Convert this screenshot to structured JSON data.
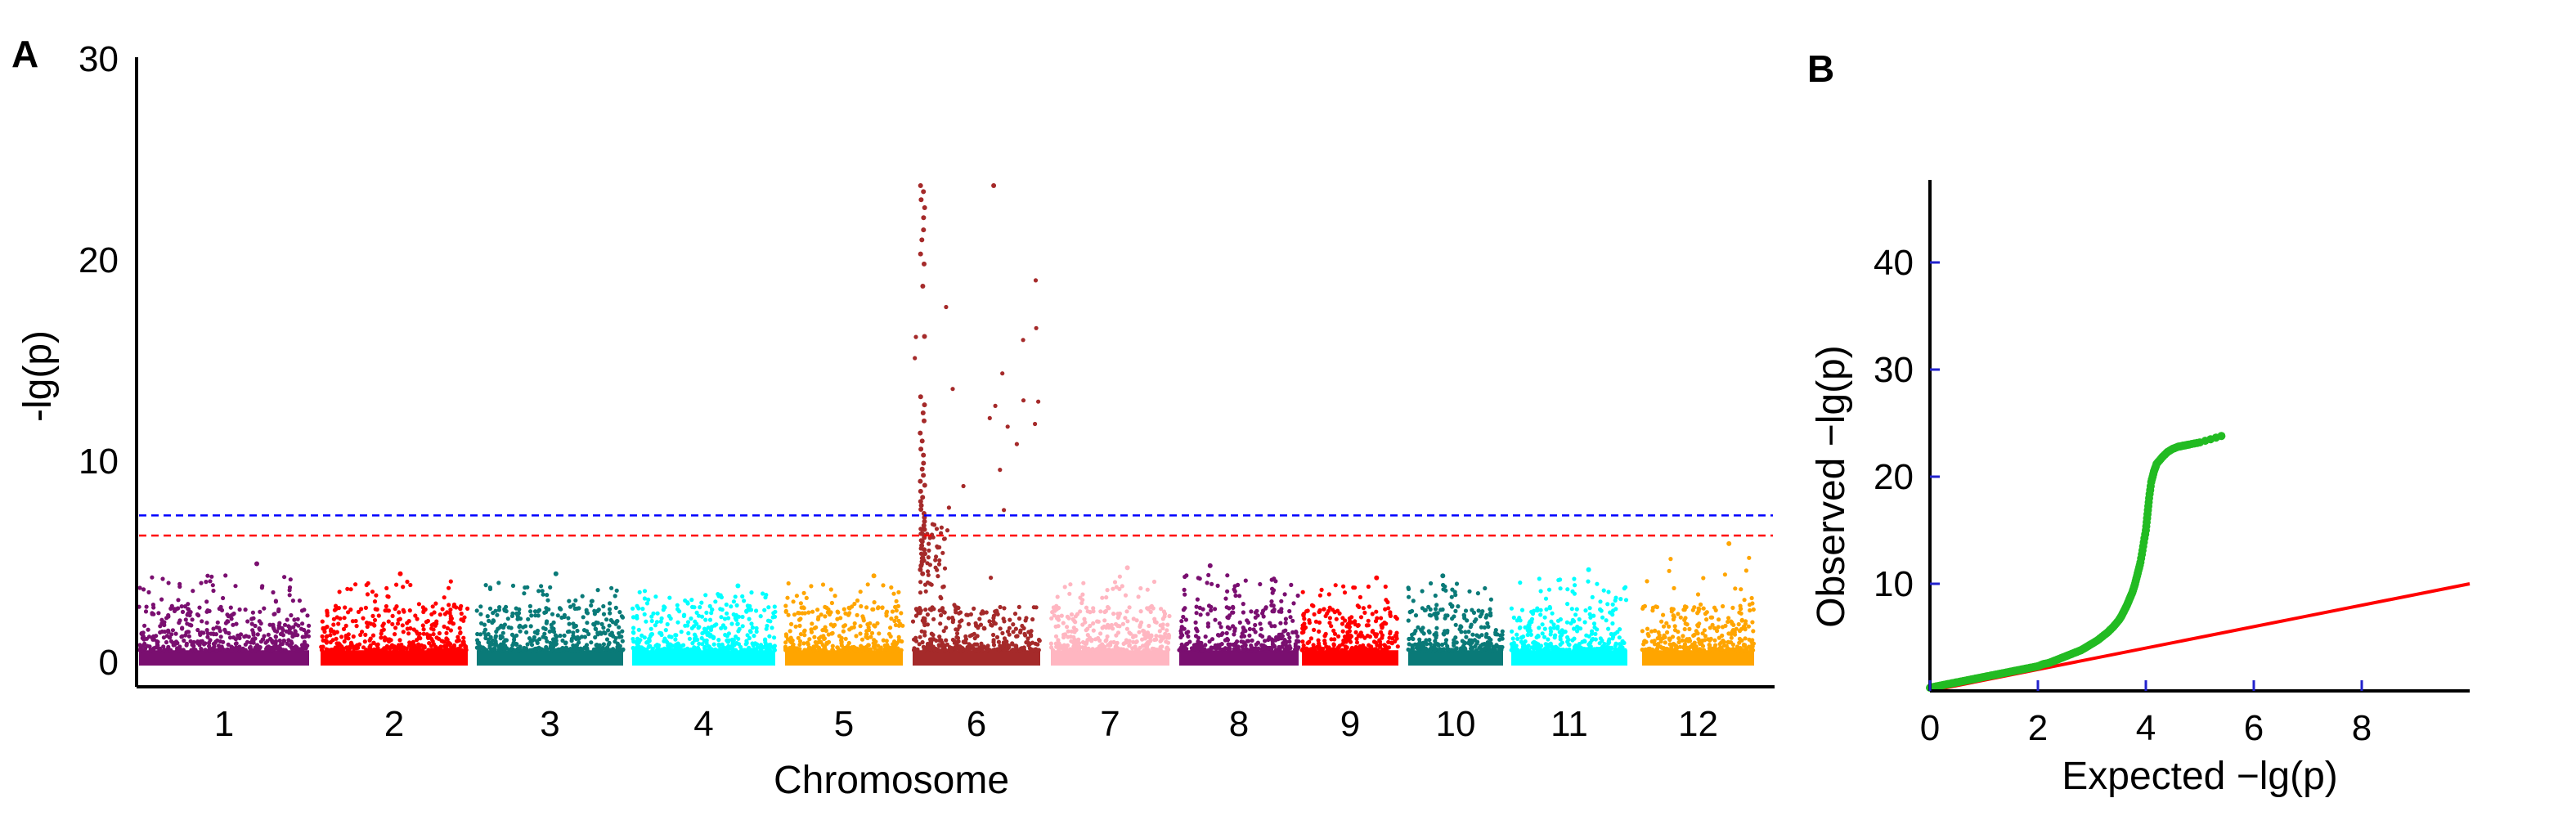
{
  "chart_data": [
    {
      "panel": "A",
      "type": "scatter",
      "subtype": "manhattan",
      "xlabel": "Chromosome",
      "ylabel": "-lg(p)",
      "ylim": [
        0,
        30
      ],
      "yticks": [
        0,
        10,
        20,
        30
      ],
      "categories": [
        "1",
        "2",
        "3",
        "4",
        "5",
        "6",
        "7",
        "8",
        "9",
        "10",
        "11",
        "12"
      ],
      "chromosome_colors": [
        "#7a0f70",
        "#ff0000",
        "#0a7a78",
        "#00ffff",
        "#ffa500",
        "#a52a2a",
        "#ffb6c1",
        "#7a0f70",
        "#ff0000",
        "#0a7a78",
        "#00ffff",
        "#ffa500"
      ],
      "chromosome_max": [
        4.9,
        4.4,
        4.4,
        3.8,
        4.3,
        23.7,
        4.7,
        4.8,
        4.2,
        4.3,
        4.6,
        5.9
      ],
      "thresholds": [
        {
          "value": 7.3,
          "color": "#0000ff",
          "style": "dashed"
        },
        {
          "value": 6.3,
          "color": "#ff0000",
          "style": "dashed"
        }
      ],
      "peak_points_chr6": [
        23.7,
        23.4,
        23.0,
        22.6,
        22.1,
        21.5,
        21.0,
        20.3,
        19.8,
        18.7,
        16.2,
        13.2,
        12.8,
        12.4,
        12.0,
        11.4,
        11.0,
        10.6,
        10.3,
        9.9,
        9.6,
        9.3,
        9.0,
        8.8,
        8.5,
        8.2,
        8.0,
        7.8,
        7.6,
        7.4,
        7.2,
        7.0,
        6.8,
        6.6,
        6.4,
        6.2,
        6.0,
        5.8,
        5.6,
        5.4,
        5.2,
        5.0,
        4.8,
        4.6,
        4.4
      ]
    },
    {
      "panel": "B",
      "type": "scatter",
      "subtype": "qq",
      "xlabel": "Expected −lg(p)",
      "ylabel": "Observed −lg(p)",
      "xlim": [
        0,
        10
      ],
      "ylim": [
        0,
        47
      ],
      "xticks": [
        0,
        2,
        4,
        6,
        8
      ],
      "yticks": [
        10,
        20,
        30,
        40
      ],
      "reference_line": {
        "x": [
          0,
          10
        ],
        "y": [
          0,
          10
        ],
        "color": "#ff0000"
      },
      "point_color": "#22bb22",
      "points": [
        [
          0.0,
          0.3
        ],
        [
          0.1,
          0.4
        ],
        [
          0.2,
          0.5
        ],
        [
          0.3,
          0.6
        ],
        [
          0.4,
          0.7
        ],
        [
          0.5,
          0.8
        ],
        [
          0.6,
          0.9
        ],
        [
          0.7,
          1.0
        ],
        [
          0.8,
          1.1
        ],
        [
          0.9,
          1.2
        ],
        [
          1.0,
          1.3
        ],
        [
          1.1,
          1.4
        ],
        [
          1.2,
          1.5
        ],
        [
          1.3,
          1.6
        ],
        [
          1.4,
          1.7
        ],
        [
          1.5,
          1.8
        ],
        [
          1.6,
          1.9
        ],
        [
          1.7,
          2.0
        ],
        [
          1.8,
          2.1
        ],
        [
          1.9,
          2.2
        ],
        [
          2.0,
          2.3
        ],
        [
          2.1,
          2.5
        ],
        [
          2.2,
          2.6
        ],
        [
          2.3,
          2.8
        ],
        [
          2.4,
          3.0
        ],
        [
          2.5,
          3.2
        ],
        [
          2.6,
          3.4
        ],
        [
          2.7,
          3.6
        ],
        [
          2.8,
          3.8
        ],
        [
          2.9,
          4.1
        ],
        [
          3.0,
          4.4
        ],
        [
          3.1,
          4.7
        ],
        [
          3.2,
          5.1
        ],
        [
          3.3,
          5.5
        ],
        [
          3.4,
          6.0
        ],
        [
          3.5,
          6.6
        ],
        [
          3.55,
          7.0
        ],
        [
          3.6,
          7.5
        ],
        [
          3.65,
          8.0
        ],
        [
          3.7,
          8.6
        ],
        [
          3.75,
          9.2
        ],
        [
          3.8,
          10.0
        ],
        [
          3.85,
          11.0
        ],
        [
          3.9,
          12.0
        ],
        [
          3.95,
          13.5
        ],
        [
          4.0,
          15.0
        ],
        [
          4.03,
          16.5
        ],
        [
          4.06,
          18.0
        ],
        [
          4.1,
          19.5
        ],
        [
          4.15,
          20.5
        ],
        [
          4.2,
          21.2
        ],
        [
          4.3,
          21.8
        ],
        [
          4.4,
          22.3
        ],
        [
          4.5,
          22.6
        ],
        [
          4.6,
          22.8
        ],
        [
          4.7,
          22.9
        ],
        [
          4.8,
          23.0
        ],
        [
          5.0,
          23.2
        ],
        [
          5.4,
          23.8
        ]
      ]
    }
  ],
  "panels": {
    "a_label": "A",
    "b_label": "B"
  }
}
